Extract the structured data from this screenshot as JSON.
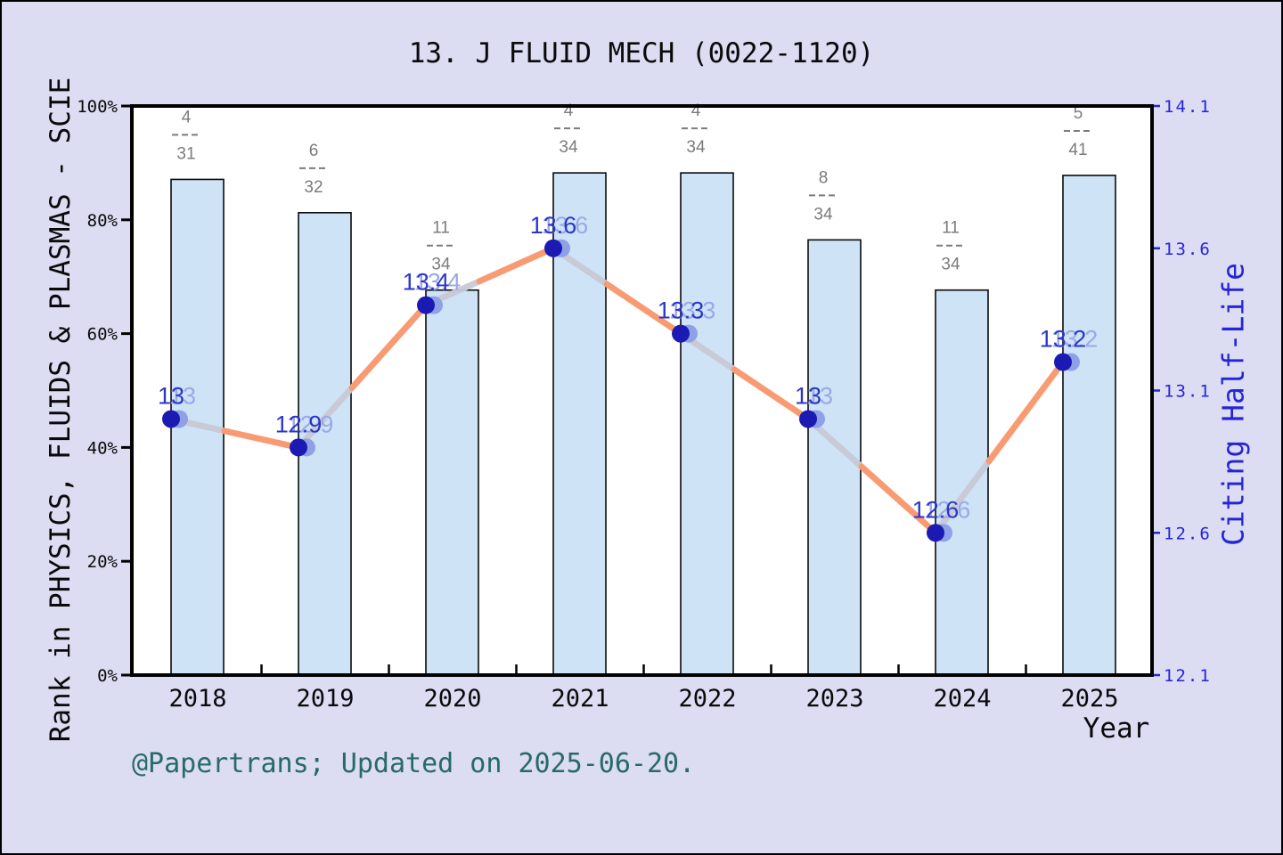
{
  "title": "13. J FLUID MECH (0022-1120)",
  "footer": "@Papertrans; Updated on 2025-06-20.",
  "axes": {
    "left": {
      "label": "Rank in PHYSICS, FLUIDS & PLASMAS - SCIE",
      "tick_labels": [
        "0%",
        "20%",
        "40%",
        "60%",
        "80%",
        "100%"
      ],
      "tick_values": [
        0,
        20,
        40,
        60,
        80,
        100
      ],
      "lim": [
        0,
        100
      ]
    },
    "right": {
      "label": "Citing Half-Life",
      "tick_labels": [
        "12.1",
        "12.6",
        "13.1",
        "13.6",
        "14.1"
      ],
      "tick_values": [
        12.1,
        12.6,
        13.1,
        13.6,
        14.1
      ],
      "lim": [
        12.1,
        14.1
      ]
    },
    "x": {
      "label": "Year",
      "tick_labels": [
        "2018",
        "2019",
        "2020",
        "2021",
        "2022",
        "2023",
        "2024",
        "2025"
      ]
    }
  },
  "chart_data": {
    "type": "bar+line",
    "categories": [
      2018,
      2019,
      2020,
      2021,
      2022,
      2023,
      2024,
      2025
    ],
    "grid": false,
    "legend": "none",
    "series": [
      {
        "name": "rank-percentile-bars",
        "type": "bar",
        "axis": "left",
        "values_percent": [
          87.1,
          81.25,
          67.65,
          88.24,
          88.24,
          76.47,
          67.65,
          87.8
        ],
        "fractions": [
          {
            "numerator": "4",
            "denominator": "31"
          },
          {
            "numerator": "6",
            "denominator": "32"
          },
          {
            "numerator": "11",
            "denominator": "34"
          },
          {
            "numerator": "4",
            "denominator": "34"
          },
          {
            "numerator": "4",
            "denominator": "34"
          },
          {
            "numerator": "8",
            "denominator": "34"
          },
          {
            "numerator": "11",
            "denominator": "34"
          },
          {
            "numerator": "5",
            "denominator": "41"
          }
        ]
      },
      {
        "name": "citing-half-life-line",
        "type": "line",
        "axis": "right",
        "values": [
          13.0,
          12.9,
          13.4,
          13.6,
          13.3,
          13.0,
          12.6,
          13.2
        ],
        "point_labels": [
          "13",
          "12.9",
          "13.4",
          "13.6",
          "13.3",
          "13",
          "12.6",
          "13.2"
        ]
      }
    ]
  },
  "colors": {
    "background": "#dcdcf3",
    "plot_background": "#ffffff",
    "frame": "#000000",
    "bar_fill": "#cee3f6",
    "bar_edge": "#0a0a0a",
    "line_salmon": "#f99b72",
    "line_gray": "#c8cad6",
    "marker_dark": "#1b1bb3",
    "marker_light": "#8fa0e6",
    "point_label_dark": "#2b36c8",
    "point_label_light": "#9ba8e6",
    "right_axis_blue": "#2525d8",
    "fraction_gray": "#7b7b7b",
    "footer_teal": "#266b66",
    "tick_text": "#0a0a0a"
  }
}
